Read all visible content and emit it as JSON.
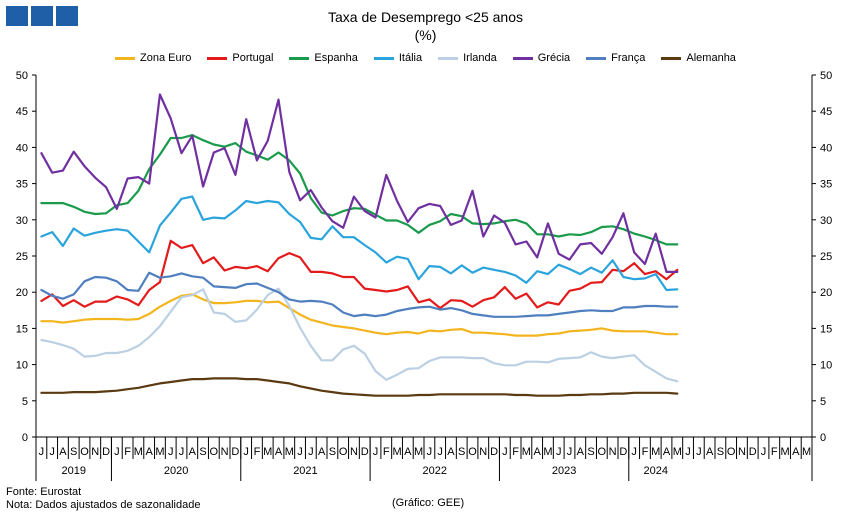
{
  "header": {
    "logo_name": "gee-logo",
    "title": "Taxa de Desemprego <25 anos",
    "subtitle": "(%)"
  },
  "footer": {
    "source": "Fonte: Eurostat",
    "note": "Nota: Dados ajustados de sazonalidade",
    "credit": "(Gráfico: GEE)"
  },
  "chart_data": {
    "type": "line",
    "title": "Taxa de Desemprego <25 anos",
    "ylabel": "(%)",
    "ylim": [
      0,
      50
    ],
    "yticks": [
      0,
      5,
      10,
      15,
      20,
      25,
      30,
      35,
      40,
      45,
      50
    ],
    "grid": false,
    "legend_position": "top",
    "month_labels": [
      "J",
      "J",
      "A",
      "S",
      "O",
      "N",
      "D",
      "J",
      "F",
      "M",
      "A",
      "M",
      "J",
      "J",
      "A",
      "S",
      "O",
      "N",
      "D",
      "J",
      "F",
      "M",
      "A",
      "M",
      "J",
      "J",
      "A",
      "S",
      "O",
      "N",
      "D",
      "J",
      "F",
      "M",
      "A",
      "M",
      "J",
      "J",
      "A",
      "S",
      "O",
      "N",
      "D",
      "J",
      "F",
      "M",
      "A",
      "M",
      "J",
      "J",
      "A",
      "S",
      "O",
      "N",
      "D",
      "J",
      "F",
      "M",
      "A",
      "M",
      "J",
      "J",
      "A",
      "S",
      "O",
      "N",
      "D",
      "J",
      "F",
      "M",
      "A",
      "M"
    ],
    "years": [
      {
        "label": "2019",
        "start": 0,
        "count": 7
      },
      {
        "label": "2020",
        "start": 7,
        "count": 12
      },
      {
        "label": "2021",
        "start": 19,
        "count": 12
      },
      {
        "label": "2022",
        "start": 31,
        "count": 12
      },
      {
        "label": "2023",
        "start": 43,
        "count": 12
      },
      {
        "label": "2024",
        "start": 55,
        "count": 5
      }
    ],
    "series": [
      {
        "name": "Zona Euro",
        "color": "#f2b51e",
        "values": [
          16.0,
          16.0,
          15.8,
          16.0,
          16.2,
          16.3,
          16.3,
          16.3,
          16.2,
          16.3,
          17.0,
          18.0,
          18.8,
          19.5,
          19.7,
          19.0,
          18.5,
          18.5,
          18.6,
          18.8,
          18.8,
          18.6,
          18.7,
          17.8,
          16.9,
          16.2,
          15.8,
          15.4,
          15.2,
          15.0,
          14.7,
          14.4,
          14.2,
          14.4,
          14.5,
          14.3,
          14.7,
          14.6,
          14.8,
          14.9,
          14.4,
          14.4,
          14.3,
          14.2,
          14.0,
          14.0,
          14.0,
          14.2,
          14.3,
          14.6,
          14.7,
          14.8,
          15.0,
          14.7,
          14.6,
          14.6,
          14.6,
          14.4,
          14.2,
          14.2
        ]
      },
      {
        "name": "Portugal",
        "color": "#e31b1b",
        "values": [
          18.8,
          19.7,
          18.1,
          18.9,
          18.0,
          18.7,
          18.7,
          19.4,
          19.0,
          18.2,
          20.3,
          21.4,
          27.1,
          26.1,
          26.5,
          24.0,
          24.8,
          23.0,
          23.5,
          23.3,
          23.6,
          22.9,
          24.7,
          25.4,
          24.8,
          22.8,
          22.8,
          22.6,
          22.1,
          22.1,
          20.5,
          20.3,
          20.1,
          20.3,
          20.8,
          18.6,
          19.0,
          17.8,
          18.9,
          18.8,
          18.0,
          18.9,
          19.3,
          20.7,
          19.1,
          19.8,
          17.9,
          18.6,
          18.3,
          20.2,
          20.5,
          21.3,
          21.4,
          23.1,
          22.9,
          24.0,
          22.5,
          22.9,
          21.8,
          23.1
        ]
      },
      {
        "name": "Espanha",
        "color": "#1a9b4b",
        "values": [
          32.3,
          32.3,
          32.3,
          31.8,
          31.1,
          30.8,
          30.9,
          32.0,
          32.3,
          34.0,
          37.0,
          39.0,
          41.3,
          41.3,
          41.7,
          41.0,
          40.4,
          40.1,
          40.6,
          39.4,
          38.9,
          38.3,
          39.3,
          38.2,
          36.4,
          33.0,
          31.0,
          30.6,
          31.2,
          31.6,
          31.5,
          30.7,
          29.9,
          29.9,
          29.3,
          28.2,
          29.3,
          29.8,
          30.8,
          30.5,
          29.5,
          29.4,
          29.5,
          29.8,
          30.0,
          29.5,
          28.0,
          28.0,
          27.7,
          28.0,
          27.9,
          28.3,
          29.0,
          29.1,
          28.7,
          28.1,
          27.7,
          27.2,
          26.6,
          26.6
        ]
      },
      {
        "name": "Itália",
        "color": "#2aa4dc",
        "values": [
          27.7,
          28.3,
          26.4,
          28.8,
          27.8,
          28.2,
          28.5,
          28.7,
          28.5,
          27.0,
          25.5,
          29.2,
          31.0,
          32.9,
          33.2,
          30.0,
          30.3,
          30.2,
          31.3,
          32.6,
          32.3,
          32.6,
          32.4,
          30.8,
          29.7,
          27.5,
          27.3,
          29.1,
          27.6,
          27.6,
          26.5,
          25.5,
          24.1,
          24.9,
          24.6,
          21.8,
          23.6,
          23.5,
          22.6,
          23.7,
          22.7,
          23.4,
          23.1,
          22.8,
          22.3,
          21.3,
          22.9,
          22.5,
          23.8,
          23.2,
          22.5,
          23.4,
          22.7,
          24.4,
          22.1,
          21.8,
          21.9,
          22.5,
          20.3,
          20.4
        ]
      },
      {
        "name": "Irlanda",
        "color": "#bcd0e3",
        "values": [
          13.4,
          13.1,
          12.7,
          12.2,
          11.1,
          11.2,
          11.6,
          11.6,
          11.9,
          12.6,
          13.8,
          15.3,
          17.3,
          19.3,
          19.6,
          20.4,
          17.2,
          17.0,
          15.9,
          16.1,
          17.6,
          19.6,
          20.5,
          18.1,
          15.1,
          12.6,
          10.6,
          10.6,
          12.1,
          12.6,
          11.5,
          9.1,
          7.9,
          8.6,
          9.4,
          9.5,
          10.5,
          11.0,
          11.0,
          11.0,
          10.9,
          10.9,
          10.2,
          9.9,
          9.9,
          10.4,
          10.4,
          10.3,
          10.8,
          10.9,
          11.0,
          11.7,
          11.1,
          10.9,
          11.1,
          11.3,
          9.9,
          9.0,
          8.1,
          7.7
        ]
      },
      {
        "name": "Grécia",
        "color": "#7030a0",
        "values": [
          39.2,
          36.5,
          36.8,
          39.4,
          37.4,
          35.8,
          34.5,
          31.5,
          35.7,
          35.9,
          35.0,
          47.3,
          44.0,
          39.2,
          41.6,
          34.6,
          39.3,
          39.9,
          36.2,
          43.9,
          38.2,
          40.9,
          46.6,
          36.6,
          32.7,
          34.1,
          31.7,
          29.8,
          28.9,
          33.2,
          31.2,
          30.3,
          36.2,
          32.6,
          29.7,
          31.6,
          32.2,
          31.9,
          29.3,
          29.9,
          34.0,
          27.7,
          30.6,
          29.6,
          26.6,
          27.0,
          24.8,
          29.5,
          25.3,
          24.5,
          26.6,
          26.8,
          25.3,
          27.6,
          30.9,
          25.5,
          23.9,
          28.1,
          22.8,
          22.8
        ]
      },
      {
        "name": "França",
        "color": "#4f7fbf",
        "values": [
          20.3,
          19.5,
          19.1,
          19.7,
          21.5,
          22.1,
          22.0,
          21.5,
          20.3,
          20.2,
          22.7,
          22.0,
          22.2,
          22.6,
          22.2,
          22.0,
          20.8,
          20.7,
          20.6,
          21.1,
          21.2,
          20.6,
          20.0,
          19.0,
          18.7,
          18.8,
          18.7,
          18.3,
          17.2,
          16.7,
          16.9,
          16.7,
          16.9,
          17.4,
          17.7,
          17.9,
          18.0,
          17.6,
          17.8,
          17.5,
          17.0,
          16.8,
          16.6,
          16.6,
          16.6,
          16.7,
          16.8,
          16.8,
          17.0,
          17.2,
          17.4,
          17.5,
          17.4,
          17.4,
          17.9,
          17.9,
          18.1,
          18.1,
          18.0,
          18.0
        ]
      },
      {
        "name": "Alemanha",
        "color": "#5b3a12",
        "values": [
          6.1,
          6.1,
          6.1,
          6.2,
          6.2,
          6.2,
          6.3,
          6.4,
          6.6,
          6.8,
          7.1,
          7.4,
          7.6,
          7.8,
          8.0,
          8.0,
          8.1,
          8.1,
          8.1,
          8.0,
          8.0,
          7.8,
          7.6,
          7.4,
          7.0,
          6.7,
          6.4,
          6.2,
          6.0,
          5.9,
          5.8,
          5.7,
          5.7,
          5.7,
          5.7,
          5.8,
          5.8,
          5.9,
          5.9,
          5.9,
          5.9,
          5.9,
          5.9,
          5.9,
          5.8,
          5.8,
          5.7,
          5.7,
          5.7,
          5.8,
          5.8,
          5.9,
          5.9,
          6.0,
          6.0,
          6.1,
          6.1,
          6.1,
          6.1,
          6.0
        ]
      }
    ]
  }
}
